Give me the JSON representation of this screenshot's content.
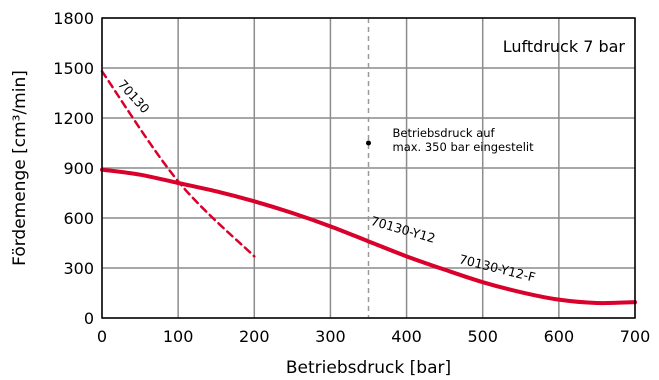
{
  "chart_data": {
    "type": "line",
    "xlabel": "Betriebsdruck [bar]",
    "ylabel": "Fördemenge [cm³/min]",
    "xlim": [
      0,
      700
    ],
    "ylim": [
      0,
      1800
    ],
    "x_ticks": [
      0,
      100,
      200,
      300,
      400,
      500,
      600,
      700
    ],
    "y_ticks": [
      0,
      300,
      600,
      900,
      1200,
      1500,
      1800
    ],
    "grid": true,
    "info_box": "Luftdruck 7 bar",
    "series": [
      {
        "name": "70130",
        "style": "dashed",
        "color": "#d9002b",
        "x": [
          0,
          100,
          200
        ],
        "y": [
          1480,
          820,
          370
        ]
      },
      {
        "name": "70130-Y12",
        "style": "solid",
        "color": "#d9002b",
        "x": [
          0,
          50,
          100,
          150,
          200,
          250,
          300,
          350,
          400,
          450,
          500,
          550,
          600,
          650,
          700
        ],
        "y": [
          890,
          860,
          810,
          760,
          700,
          630,
          550,
          460,
          370,
          290,
          215,
          155,
          110,
          90,
          95
        ]
      }
    ],
    "series_labels": [
      "70130",
      "70130-Y12",
      "70130-Y12-F"
    ],
    "annotations": [
      {
        "text_lines": [
          "Betriebsdruck auf",
          "max. 350 bar eingestelit"
        ],
        "marker": {
          "x": 350,
          "y": 1050
        }
      }
    ],
    "reference_lines": [
      {
        "orientation": "vertical",
        "x": 350,
        "style": "dashed",
        "color": "#999999"
      }
    ]
  }
}
